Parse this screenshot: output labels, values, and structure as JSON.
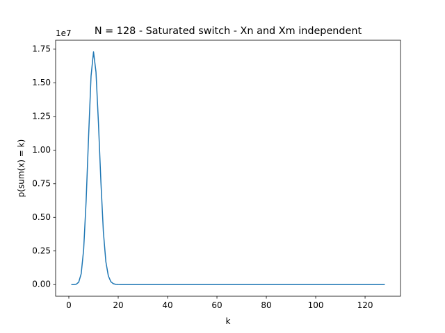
{
  "chart_data": {
    "type": "line",
    "title": "N = 128 - Saturated switch - Xn and Xm independent",
    "xlabel": "k",
    "ylabel": "p(sum(x) = k)",
    "offset_label": "1e7",
    "xlim": [
      -5.35,
      134.35
    ],
    "ylim": [
      -0.0865,
      1.8165
    ],
    "x_ticks": [
      0,
      20,
      40,
      60,
      80,
      100,
      120
    ],
    "x_tick_labels": [
      "0",
      "20",
      "40",
      "60",
      "80",
      "100",
      "120"
    ],
    "y_ticks": [
      0.0,
      0.25,
      0.5,
      0.75,
      1.0,
      1.25,
      1.5,
      1.75
    ],
    "y_tick_labels": [
      "0.00",
      "0.25",
      "0.50",
      "0.75",
      "1.00",
      "1.25",
      "1.50",
      "1.75"
    ],
    "grid": false,
    "line_color": "#1f77b4",
    "series": [
      {
        "x": [
          1,
          2,
          3,
          4,
          5,
          6,
          7,
          8,
          9,
          10,
          11,
          12,
          13,
          14,
          15,
          16,
          17,
          18,
          19,
          20,
          21,
          22,
          23,
          24,
          25,
          30,
          40,
          50,
          60,
          70,
          80,
          90,
          100,
          110,
          120,
          128
        ],
        "values": [
          0.0,
          0.0,
          0.003,
          0.018,
          0.08,
          0.26,
          0.62,
          1.1,
          1.55,
          1.73,
          1.58,
          1.2,
          0.76,
          0.39,
          0.17,
          0.065,
          0.022,
          0.007,
          0.002,
          0.0005,
          0.0001,
          0.0,
          0.0,
          0.0,
          0.0,
          0.0,
          0.0,
          0.0,
          0.0,
          0.0,
          0.0,
          0.0,
          0.0,
          0.0,
          0.0,
          0.0
        ]
      }
    ]
  }
}
